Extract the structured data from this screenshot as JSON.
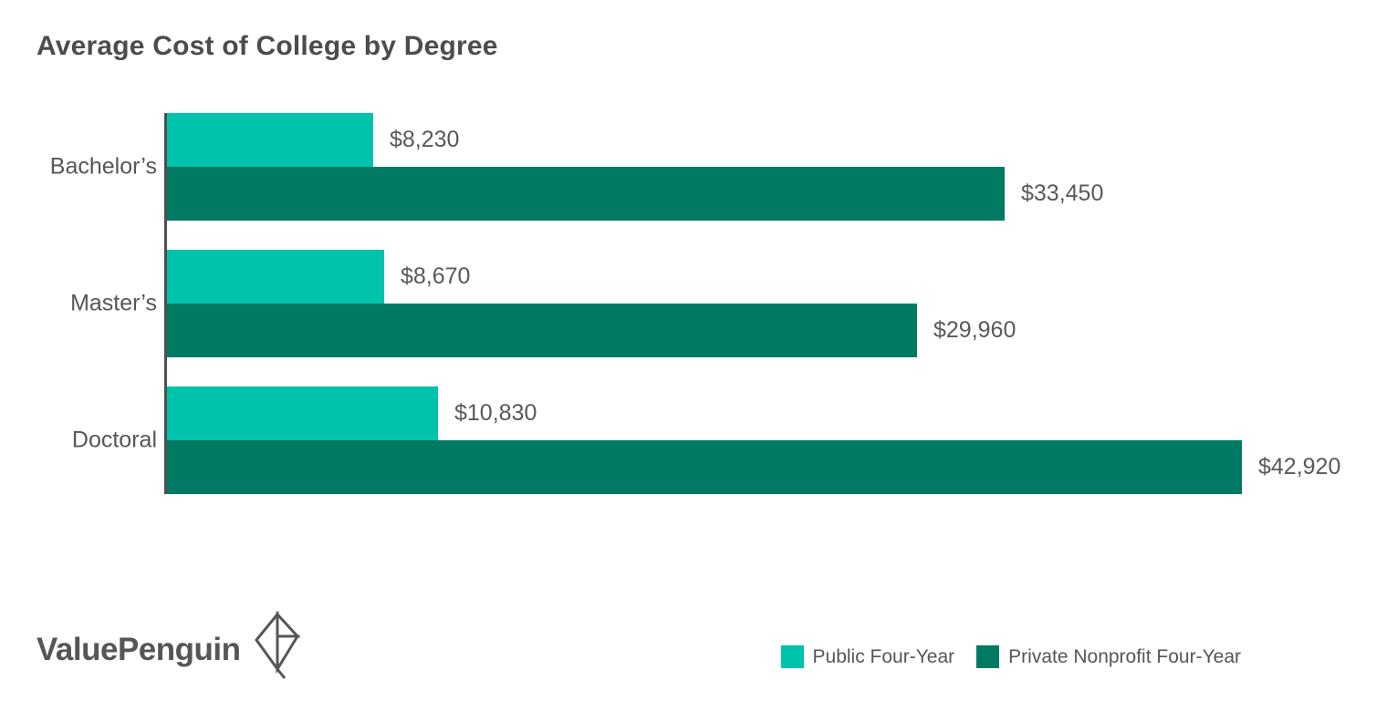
{
  "title": "Average Cost of College by Degree",
  "branding": {
    "name": "ValuePenguin",
    "mark": "diamond-penguin-logo"
  },
  "colors": {
    "public": "#00c3ac",
    "private": "#007a62",
    "text": "#55565a",
    "axis": "#4d4e50"
  },
  "chart_data": {
    "type": "bar",
    "orientation": "horizontal",
    "title": "Average Cost of College by Degree",
    "categories": [
      "Bachelor’s",
      "Master’s",
      "Doctoral"
    ],
    "series": [
      {
        "name": "Public Four-Year",
        "color": "#00c3ac",
        "values": [
          8230,
          8670,
          10830
        ],
        "labels": [
          "$8,230",
          "$8,670",
          "$10,830"
        ]
      },
      {
        "name": "Private Nonprofit Four-Year",
        "color": "#007a62",
        "values": [
          33450,
          29960,
          42920
        ],
        "labels": [
          "$33,450",
          "$29,960",
          "$42,920"
        ]
      }
    ],
    "xlim": [
      0,
      42920
    ],
    "grid": false,
    "legend_position": "bottom-right"
  }
}
